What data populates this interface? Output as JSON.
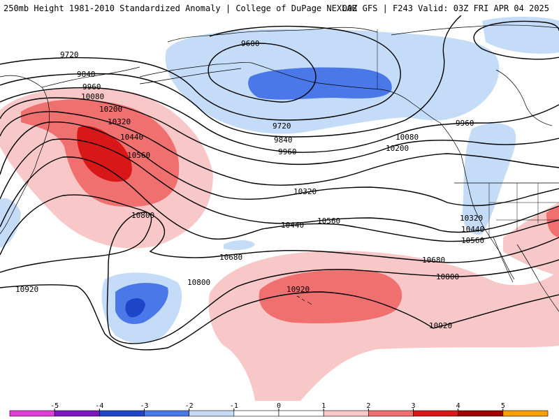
{
  "header": {
    "left": "250mb Height 1981-2010 Standardized Anomaly | College of DuPage NEXLAB",
    "right": "00Z GFS | F243 Valid: 03Z FRI APR 04 2025"
  },
  "colors": {
    "neg5": "#e040d8",
    "neg4": "#7a18c0",
    "neg3": "#1e44c8",
    "neg2": "#4a78e8",
    "neg1": "#c4dcf8",
    "zero": "#ffffff",
    "pos1": "#f8c8c8",
    "pos2": "#f07070",
    "pos3": "#d81818",
    "pos4": "#a00000",
    "pos5": "#f8a000",
    "contour": "#000000",
    "coast": "#000000"
  },
  "colorbar": {
    "ticks": [
      "-5",
      "-4",
      "-3",
      "-2",
      "-1",
      "0",
      "1",
      "2",
      "3",
      "4",
      "5"
    ]
  },
  "contours": {
    "h9600": "9600",
    "h9720_w": "9720",
    "h9720_m": "9720",
    "h9840_w": "9840",
    "h9840_m": "9840",
    "h9960_w": "9960",
    "h9960_m": "9960",
    "h9960_e": "9960",
    "h10080_w": "10080",
    "h10080_e": "10080",
    "h10200_w": "10200",
    "h10200_e": "10200",
    "h10320_w": "10320",
    "h10320_m": "10320",
    "h10320_e": "10320",
    "h10440_w": "10440",
    "h10440_m": "10440",
    "h10440_e": "10440",
    "h10560_w": "10560",
    "h10560_m": "10560",
    "h10560_e": "10560",
    "h10680_m": "10680",
    "h10680_e": "10680",
    "h10800_w": "10800",
    "h10800_m": "10800",
    "h10800_e": "10800",
    "h10920_w": "10920",
    "h10920_m": "10920",
    "h10920_e": "10920"
  }
}
